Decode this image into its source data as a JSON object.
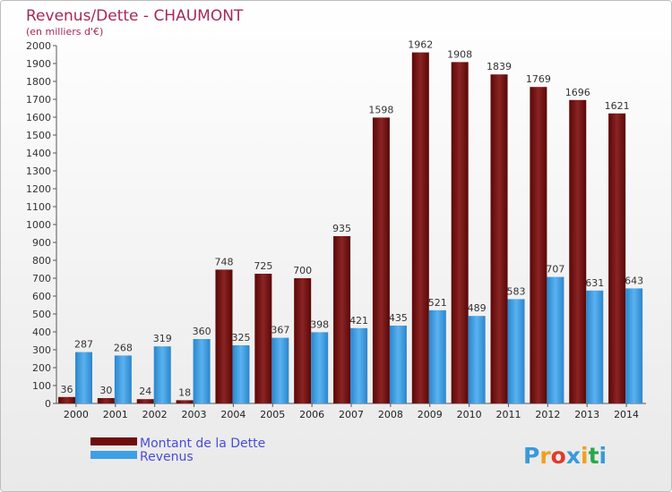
{
  "chart_data": {
    "type": "bar",
    "title": "Revenus/Dette - CHAUMONT",
    "subtitle": "(en milliers d'€)",
    "xlabel": "",
    "ylabel": "",
    "categories": [
      "2000",
      "2001",
      "2002",
      "2003",
      "2004",
      "2005",
      "2006",
      "2007",
      "2008",
      "2009",
      "2010",
      "2011",
      "2012",
      "2013",
      "2014"
    ],
    "series": [
      {
        "name": "Montant de la Dette",
        "color": "#6f0d0d",
        "values": [
          36,
          30,
          24,
          18,
          748,
          725,
          700,
          935,
          1598,
          1962,
          1908,
          1839,
          1769,
          1696,
          1621
        ]
      },
      {
        "name": "Revenus",
        "color": "#3f9fe4",
        "values": [
          287,
          268,
          319,
          360,
          325,
          367,
          398,
          421,
          435,
          521,
          489,
          583,
          707,
          631,
          643
        ]
      }
    ],
    "ylim": [
      0,
      2000
    ],
    "ytick_step": 100,
    "grid": false,
    "legend": "bottom-left"
  },
  "logo": {
    "text": "Proxiti",
    "colors": [
      "#3a9ad9",
      "#f0a020",
      "#e03a2a",
      "#3a9ad9",
      "#f0a020",
      "#2aa84a",
      "#3a9ad9"
    ]
  }
}
